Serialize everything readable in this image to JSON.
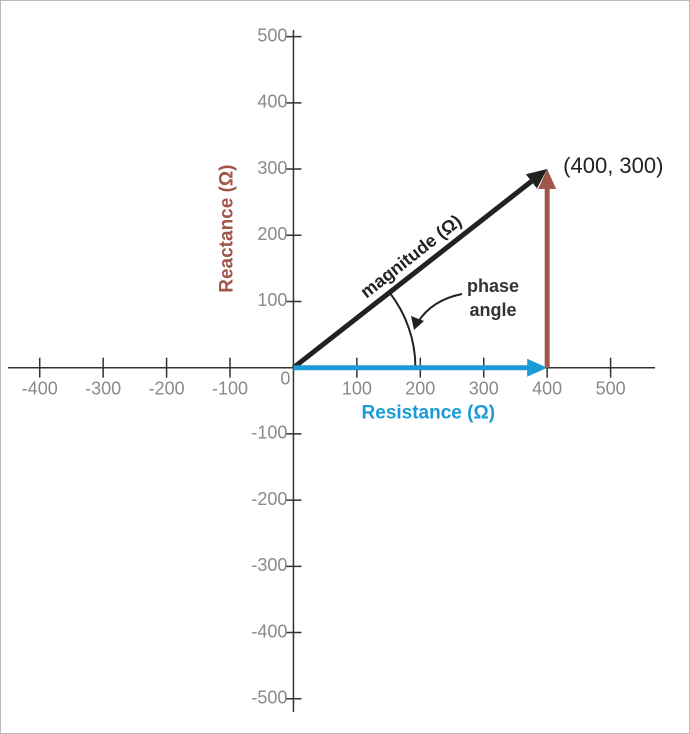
{
  "chart_data": {
    "type": "vector",
    "xlim": [
      -450,
      570
    ],
    "ylim": [
      -520,
      510
    ],
    "xticks": [
      -400,
      -300,
      -200,
      -100,
      100,
      200,
      300,
      400,
      500
    ],
    "yticks": [
      -500,
      -400,
      -300,
      -200,
      -100,
      100,
      200,
      300,
      400,
      500
    ],
    "origin_label": "0",
    "y_label": "Reactance (Ω)",
    "y_label_color": "#a0574a",
    "vectors": [
      {
        "name": "magnitude (Ω)",
        "color": "#222222",
        "start": [
          0,
          0
        ],
        "end": [
          400,
          300
        ]
      },
      {
        "name": "Resistance (Ω)",
        "color": "#1a9ad6",
        "start": [
          0,
          0
        ],
        "end": [
          400,
          0
        ]
      },
      {
        "color": "#a0574a",
        "start": [
          400,
          0
        ],
        "end": [
          400,
          300
        ]
      }
    ],
    "point_label": "(400, 300)",
    "phase_angle_label": [
      "phase",
      "angle"
    ]
  }
}
